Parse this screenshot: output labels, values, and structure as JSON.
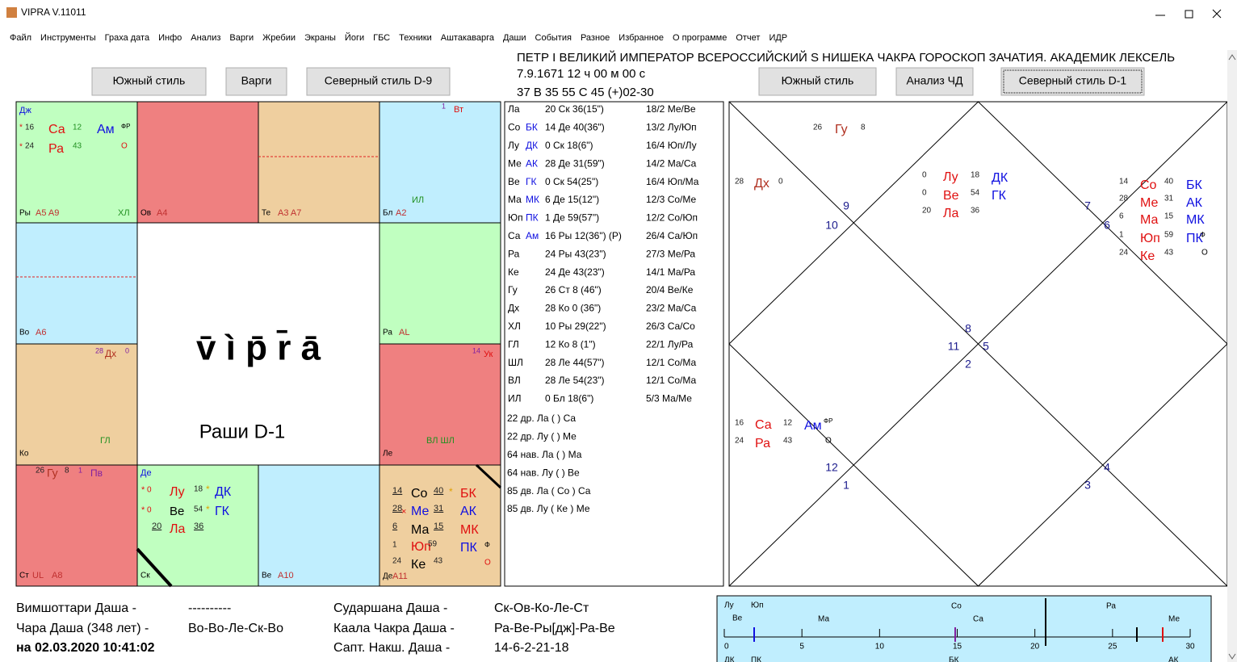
{
  "window": {
    "title": "VIPRA V.11011"
  },
  "menu": [
    "Файл",
    "Инструменты",
    "Граха дата",
    "Инфо",
    "Анализ",
    "Варги",
    "Жребии",
    "Экраны",
    "Йоги",
    "ГБС",
    "Техники",
    "Аштакаварга",
    "Даши",
    "События",
    "Разное",
    "Избранное",
    "О программе",
    "Отчет",
    "ИДР"
  ],
  "buttons_left": [
    "Южный стиль",
    "Варги",
    "Северный стиль D-9"
  ],
  "buttons_right": [
    "Южный стиль",
    "Анализ ЧД",
    "Северный стиль D-1"
  ],
  "header": [
    "ПЕТР I ВЕЛИКИЙ  ИМПЕРАТОР ВСЕРОССИЙСКИЙ S  НИШЕКА ЧАКРА ГОРОСКОП ЗАЧАТИЯ. АКАДЕМИК ЛЕКСЕЛЬ",
    "7.9.1671   12 ч 00 м 00 с",
    "37 В 35   55 С 45   (+)02-30"
  ],
  "south_chart": {
    "pi": [
      "Дж",
      "*",
      "16",
      "Са",
      "12",
      "Ам",
      "ФР",
      "*",
      "24",
      "Ра",
      "43",
      "О",
      "Ры",
      "A5 A9",
      "ХЛ"
    ],
    "ar": [
      "Ов",
      "A4"
    ],
    "ta": [
      "Те",
      "A3 A7"
    ],
    "ge": [
      "1",
      "Вт",
      "ИЛ",
      "Бл",
      "A2"
    ],
    "aq": [
      "Во",
      "A6"
    ],
    "ca": [
      "Ра",
      "AL"
    ],
    "cp": [
      "28",
      "Дх",
      "0",
      "ГЛ",
      "Ко"
    ],
    "le": [
      "14",
      "Ук",
      "ВЛ ШЛ",
      "Ле"
    ],
    "sg": [
      "26",
      "Гу",
      "8",
      "1",
      "Пв",
      "Ст",
      "UL",
      "A8"
    ],
    "sc": [
      "Де",
      "*",
      "0",
      "Лу",
      "18",
      "*",
      "ДК",
      "*",
      "0",
      "Ве",
      "54",
      "*",
      "ГК",
      "20",
      "Ла",
      "36",
      "Ск"
    ],
    "li": [
      "Ве",
      "A10"
    ],
    "vi": [
      "14",
      "Со",
      "40",
      "*",
      "БК",
      "28",
      "×",
      "Ме",
      "31",
      "АК",
      "6",
      "Ма",
      "15",
      "МК",
      "1",
      "Юп",
      "59",
      "ПК",
      "Ф",
      "24",
      "Ке",
      "43",
      "О",
      "Де",
      "A11"
    ],
    "logo": "v̄  ì  p̄  r̄  ā",
    "caption": "Раши D-1"
  },
  "positions": [
    {
      "planet": "Ла",
      "deg": "20 Ск 36(15\")",
      "dignity": "18/2 Ме/Ве"
    },
    {
      "planet": "Со",
      "tag": "БК",
      "deg": "14 Де 40(36\")",
      "dignity": "13/2 Лу/Юп"
    },
    {
      "planet": "Лу",
      "tag": "ДК",
      "deg": "0   Ск 18(6\")",
      "dignity": "16/4 Юп/Лу"
    },
    {
      "planet": "Ме",
      "tag": "АК",
      "deg": "28 Де 31(59\")",
      "dignity": "14/2 Ма/Са"
    },
    {
      "planet": "Ве",
      "tag": "ГК",
      "deg": "0   Ск 54(25\")",
      "dignity": "16/4 Юп/Ма"
    },
    {
      "planet": "Ма",
      "tag": "МК",
      "deg": "6   Де 15(12\")",
      "dignity": "12/3 Со/Ме"
    },
    {
      "planet": "Юп",
      "tag": "ПК",
      "deg": "1   Де 59(57\")",
      "dignity": "12/2 Со/Юп"
    },
    {
      "planet": "Са",
      "tag": "Ам",
      "deg": "16 Ры 12(36\") (Р)",
      "dignity": "26/4 Са/Юп"
    },
    {
      "planet": "Ра",
      "deg": "24 Ры 43(23\")",
      "dignity": "27/3 Ме/Ра"
    },
    {
      "planet": "Ке",
      "deg": "24 Де 43(23\")",
      "dignity": "14/1 Ма/Ра"
    },
    {
      "planet": "Гу",
      "deg": "26 Ст 8   (46\")",
      "dignity": "20/4 Ве/Ке"
    },
    {
      "planet": "Дх",
      "deg": "28 Ко 0   (36\")",
      "dignity": "23/2 Ма/Са"
    },
    {
      "planet": "ХЛ",
      "deg": "10 Ры 29(22\")",
      "dignity": "26/3 Са/Со"
    },
    {
      "planet": "ГЛ",
      "deg": "12 Ко 8   (1\")",
      "dignity": "22/1 Лу/Ра"
    },
    {
      "planet": "ШЛ",
      "deg": "28 Ле 44(57\")",
      "dignity": "12/1 Со/Ма"
    },
    {
      "planet": "ВЛ",
      "deg": "28 Ле 54(23\")",
      "dignity": "12/1 Со/Ма"
    },
    {
      "planet": "ИЛ",
      "deg": "0   Бл 18(6\")",
      "dignity": "5/3 Ма/Ме"
    }
  ],
  "position_notes": [
    "22 др. Ла ( ) Са",
    "22 др. Лу ( ) Ме",
    "64 нав. Ла ( ) Ма",
    "64 нав. Лу ( ) Ве",
    "85 дв. Ла ( Со ) Са",
    "85 дв. Лу ( Ке ) Ме"
  ],
  "north_chart": {
    "houses": [
      "9",
      "10",
      "7",
      "6",
      "8",
      "11",
      "5",
      "2",
      "12",
      "1",
      "4",
      "3"
    ],
    "top": [
      "26",
      "Гу",
      "8"
    ],
    "left": [
      "28",
      "Дх",
      "0"
    ],
    "center": [
      "0",
      "Лу",
      "18",
      "ДК",
      "0",
      "Ве",
      "54",
      "ГК",
      "20",
      "Ла",
      "36"
    ],
    "right": [
      "14",
      "Со",
      "40",
      "БК",
      "28",
      "Ме",
      "31",
      "АК",
      "6",
      "Ма",
      "15",
      "МК",
      "1",
      "Юп",
      "59",
      "ПК",
      "Ф",
      "24",
      "Ке",
      "43",
      "О"
    ],
    "bottom_left": [
      "16",
      "Са",
      "12",
      "Ам",
      "ФР",
      "24",
      "Ра",
      "43",
      "О"
    ]
  },
  "dashas": {
    "left": [
      "Вимшоттари Даша -",
      "----------",
      "Чара Даша (348 лет) -",
      "Во-Во-Ле-Ск-Во",
      "на 02.03.2020 10:41:02"
    ],
    "right": [
      "Сударшана Даша -",
      "Ск-Ов-Ко-Ле-Ст",
      "Каала Чакра Даша -",
      "Ра-Ве-Ры[дж]-Ра-Ве",
      "Сапт. Накш. Даша -",
      "14-6-2-21-18"
    ]
  },
  "timeline": {
    "labels": [
      "Лу",
      "Юп",
      "Ве",
      "Ма",
      "Со",
      "Са",
      "Ра",
      "Ме",
      "ДК",
      "ПК",
      "БК",
      "АК"
    ],
    "xlim": [
      0,
      30
    ],
    "xticks": [
      0,
      5,
      10,
      15,
      20,
      25,
      30
    ]
  }
}
